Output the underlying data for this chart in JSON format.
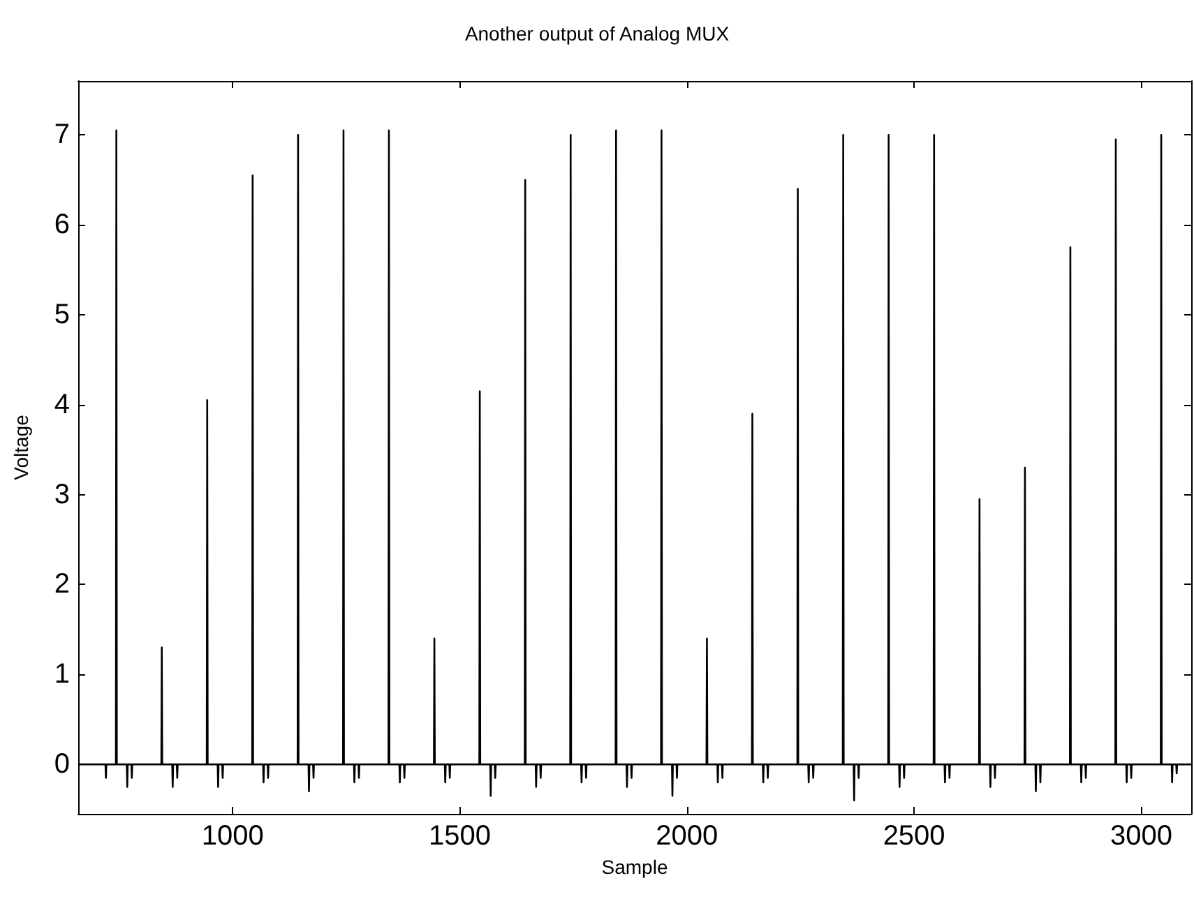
{
  "chart_data": {
    "type": "line",
    "title": "Another output of Analog MUX",
    "xlabel": "Sample",
    "ylabel": "Voltage",
    "x": [
      660,
      720,
      721,
      722,
      743,
      744,
      745,
      767,
      768,
      769,
      777,
      778,
      779,
      843,
      844,
      845,
      867,
      868,
      869,
      877,
      878,
      879,
      943,
      944,
      945,
      967,
      968,
      969,
      977,
      978,
      979,
      1043,
      1044,
      1045,
      1067,
      1068,
      1069,
      1077,
      1078,
      1079,
      1143,
      1144,
      1145,
      1167,
      1168,
      1169,
      1177,
      1178,
      1179,
      1243,
      1244,
      1245,
      1267,
      1268,
      1269,
      1277,
      1278,
      1279,
      1343,
      1344,
      1345,
      1367,
      1368,
      1369,
      1377,
      1378,
      1379,
      1443,
      1444,
      1445,
      1467,
      1468,
      1469,
      1477,
      1478,
      1479,
      1543,
      1544,
      1545,
      1567,
      1568,
      1569,
      1577,
      1578,
      1579,
      1643,
      1644,
      1645,
      1667,
      1668,
      1669,
      1677,
      1678,
      1679,
      1743,
      1744,
      1745,
      1767,
      1768,
      1769,
      1777,
      1778,
      1779,
      1843,
      1844,
      1845,
      1867,
      1868,
      1869,
      1877,
      1878,
      1879,
      1943,
      1944,
      1945,
      1967,
      1968,
      1969,
      1977,
      1978,
      1979,
      2043,
      2044,
      2045,
      2067,
      2068,
      2069,
      2077,
      2078,
      2079,
      2143,
      2144,
      2145,
      2167,
      2168,
      2169,
      2177,
      2178,
      2179,
      2243,
      2244,
      2245,
      2267,
      2268,
      2269,
      2277,
      2278,
      2279,
      2343,
      2344,
      2345,
      2367,
      2368,
      2369,
      2377,
      2378,
      2379,
      2443,
      2444,
      2445,
      2467,
      2468,
      2469,
      2477,
      2478,
      2479,
      2543,
      2544,
      2545,
      2567,
      2568,
      2569,
      2577,
      2578,
      2579,
      2643,
      2644,
      2645,
      2667,
      2668,
      2669,
      2677,
      2678,
      2679,
      2743,
      2744,
      2745,
      2767,
      2768,
      2769,
      2777,
      2778,
      2779,
      2843,
      2844,
      2845,
      2867,
      2868,
      2869,
      2877,
      2878,
      2879,
      2943,
      2944,
      2945,
      2967,
      2968,
      2969,
      2977,
      2978,
      2979,
      3043,
      3044,
      3045,
      3067,
      3068,
      3069,
      3077,
      3078,
      3079,
      3110
    ],
    "series": [
      {
        "color": "#000000",
        "values": [
          0,
          0,
          -0.15,
          0,
          0,
          7.05,
          0,
          0,
          -0.25,
          0,
          0,
          -0.15,
          0,
          0,
          1.3,
          0,
          0,
          -0.25,
          0,
          0,
          -0.15,
          0,
          0,
          4.05,
          0,
          0,
          -0.25,
          0,
          0,
          -0.15,
          0,
          0,
          6.55,
          0,
          0,
          -0.2,
          0,
          0,
          -0.15,
          0,
          0,
          7.0,
          0,
          0,
          -0.3,
          0,
          0,
          -0.15,
          0,
          0,
          7.05,
          0,
          0,
          -0.2,
          0,
          0,
          -0.15,
          0,
          0,
          7.05,
          0,
          0,
          -0.2,
          0,
          0,
          -0.15,
          0,
          0,
          1.4,
          0,
          0,
          -0.2,
          0,
          0,
          -0.15,
          0,
          0,
          4.15,
          0,
          0,
          -0.35,
          0,
          0,
          -0.15,
          0,
          0,
          6.5,
          0,
          0,
          -0.25,
          0,
          0,
          -0.15,
          0,
          0,
          7.0,
          0,
          0,
          -0.2,
          0,
          0,
          -0.15,
          0,
          0,
          7.05,
          0,
          0,
          -0.25,
          0,
          0,
          -0.15,
          0,
          0,
          7.05,
          0,
          0,
          -0.35,
          0,
          0,
          -0.15,
          0,
          0,
          1.4,
          0,
          0,
          -0.2,
          0,
          0,
          -0.15,
          0,
          0,
          3.9,
          0,
          0,
          -0.2,
          0,
          0,
          -0.15,
          0,
          0,
          6.4,
          0,
          0,
          -0.2,
          0,
          0,
          -0.15,
          0,
          0,
          7.0,
          0,
          0,
          -0.4,
          0,
          0,
          -0.15,
          0,
          0,
          7.0,
          0,
          0,
          -0.25,
          0,
          0,
          -0.15,
          0,
          0,
          7.0,
          0,
          0,
          -0.2,
          0,
          0,
          -0.15,
          0,
          0,
          2.95,
          0,
          0,
          -0.25,
          0,
          0,
          -0.15,
          0,
          0,
          3.3,
          0,
          0,
          -0.3,
          0,
          0,
          -0.2,
          0,
          0,
          5.75,
          0,
          0,
          -0.2,
          0,
          0,
          -0.15,
          0,
          0,
          6.95,
          0,
          0,
          -0.2,
          0,
          0,
          -0.15,
          0,
          0,
          7.0,
          0,
          0,
          -0.2,
          0,
          0,
          -0.1,
          0,
          0
        ]
      }
    ],
    "xlim": [
      660,
      3110
    ],
    "xticks": [
      1000,
      1500,
      2000,
      2500,
      3000
    ],
    "ylim": [
      -0.55,
      7.6
    ],
    "yticks": [
      0,
      1,
      2,
      3,
      4,
      5,
      6,
      7
    ],
    "grid": false,
    "marker": "none",
    "line_style": "solid"
  }
}
